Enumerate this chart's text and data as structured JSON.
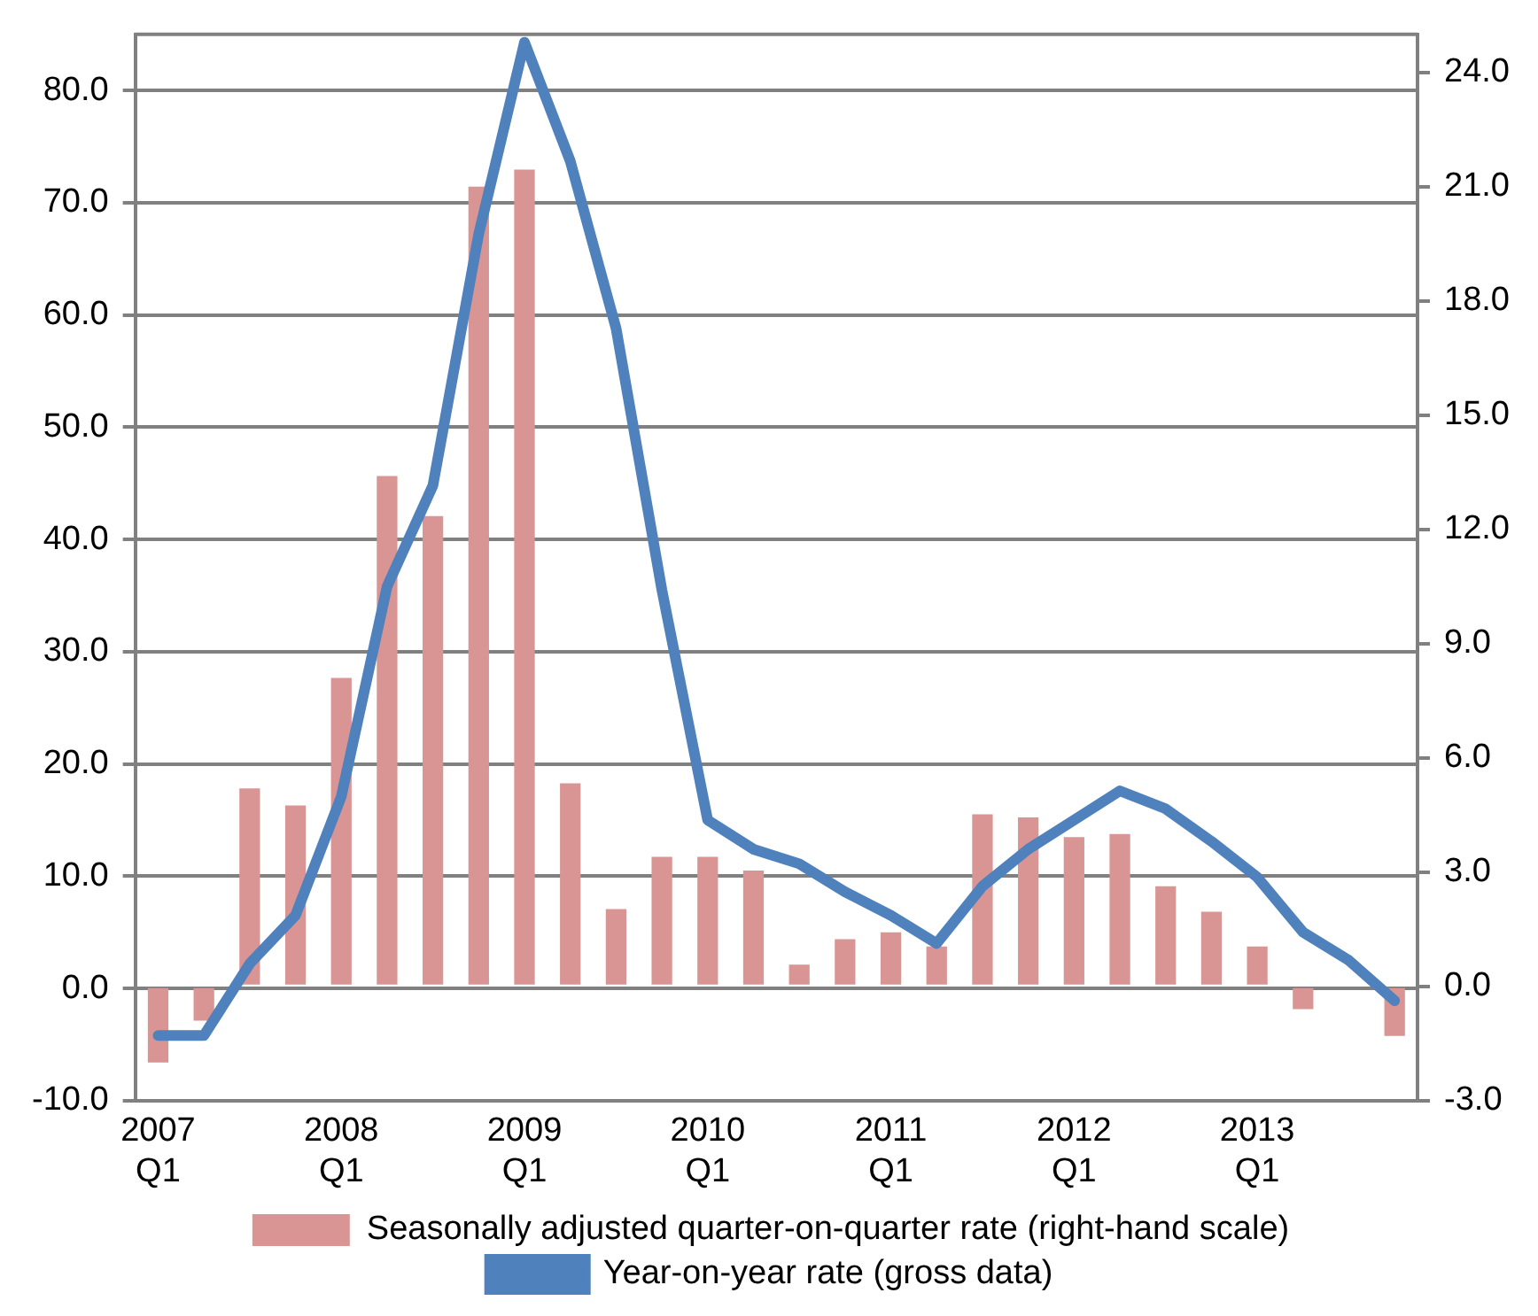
{
  "chart_data": {
    "type": "bar",
    "categories": [
      "2007\nQ1",
      null,
      null,
      null,
      "2008\nQ1",
      null,
      null,
      null,
      "2009\nQ1",
      null,
      null,
      null,
      "2010\nQ1",
      null,
      null,
      null,
      "2011\nQ1",
      null,
      null,
      null,
      "2012\nQ1",
      null,
      null,
      null,
      "2013\nQ1",
      null,
      null,
      null
    ],
    "series": [
      {
        "name": "Seasonally adjusted quarter-on-quarter rate (right-hand scale)",
        "axis": "y2",
        "color": "#d99594",
        "values": [
          -2.0,
          -0.9,
          5.2,
          4.75,
          8.1,
          13.4,
          12.35,
          21.0,
          21.45,
          5.33,
          2.03,
          3.4,
          3.4,
          3.04,
          0.57,
          1.24,
          1.42,
          1.05,
          4.52,
          4.44,
          3.92,
          4.0,
          2.63,
          1.96,
          1.05,
          -0.6,
          0,
          -1.3
        ]
      },
      {
        "name": "Year-on-year rate (gross data)",
        "type": "line",
        "color": "#4f81bd",
        "values": [
          -4.2,
          -4.2,
          2.2,
          6.5,
          17.1,
          35.8,
          44.8,
          67.2,
          84.3,
          73.7,
          58.8,
          35.5,
          15.0,
          12.4,
          11.1,
          8.6,
          6.5,
          4.0,
          9.1,
          12.4,
          15.0,
          17.6,
          16.0,
          13.1,
          9.9,
          5.0,
          2.5,
          -1.1
        ]
      }
    ],
    "ylim": [
      -10,
      85
    ],
    "yticks": [
      {
        "value": -10,
        "label": "-10.0"
      },
      {
        "value": 0,
        "label": "0.0"
      },
      {
        "value": 10,
        "label": "10.0"
      },
      {
        "value": 20,
        "label": "20.0"
      },
      {
        "value": 30,
        "label": "30.0"
      },
      {
        "value": 40,
        "label": "40.0"
      },
      {
        "value": 50,
        "label": "50.0"
      },
      {
        "value": 60,
        "label": "60.0"
      },
      {
        "value": 70,
        "label": "70.0"
      },
      {
        "value": 80,
        "label": "80.0"
      }
    ],
    "y2lim": [
      -3,
      25
    ],
    "y2ticks": [
      {
        "value": -3,
        "label": "-3.0"
      },
      {
        "value": 0,
        "label": "0.0"
      },
      {
        "value": 3,
        "label": "3.0"
      },
      {
        "value": 6,
        "label": "6.0"
      },
      {
        "value": 9,
        "label": "9.0"
      },
      {
        "value": 12,
        "label": "12.0"
      },
      {
        "value": 15,
        "label": "15.0"
      },
      {
        "value": 18,
        "label": "18.0"
      },
      {
        "value": 21,
        "label": "21.0"
      },
      {
        "value": 24,
        "label": "24.0"
      }
    ],
    "grid": "y",
    "legend": "bottom",
    "marker": "none",
    "line_style": "solid"
  }
}
